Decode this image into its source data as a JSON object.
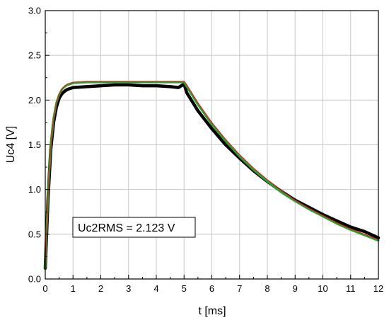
{
  "chart_data": {
    "type": "line",
    "xlabel": "t [ms]",
    "ylabel": "Uc4 [V]",
    "xlim": [
      0,
      12
    ],
    "ylim": [
      0,
      3.0
    ],
    "x_ticks": [
      "0",
      "1",
      "2",
      "3",
      "4",
      "5",
      "6",
      "7",
      "8",
      "9",
      "10",
      "11",
      "12"
    ],
    "y_ticks": [
      "0.0",
      "0.5",
      "1.0",
      "1.5",
      "2.0",
      "2.5",
      "3.0"
    ],
    "grid": true,
    "annotation": "Uc2RMS = 2.123 V",
    "series": [
      {
        "color": "#000000",
        "points": [
          [
            0,
            0.12
          ],
          [
            0.1,
            0.9
          ],
          [
            0.2,
            1.45
          ],
          [
            0.3,
            1.75
          ],
          [
            0.4,
            1.92
          ],
          [
            0.5,
            2.02
          ],
          [
            0.6,
            2.07
          ],
          [
            0.7,
            2.1
          ],
          [
            0.8,
            2.12
          ],
          [
            1,
            2.14
          ],
          [
            1.5,
            2.15
          ],
          [
            2,
            2.16
          ],
          [
            2.5,
            2.17
          ],
          [
            3,
            2.17
          ],
          [
            3.5,
            2.16
          ],
          [
            4,
            2.16
          ],
          [
            4.5,
            2.15
          ],
          [
            4.8,
            2.14
          ],
          [
            5,
            2.18
          ],
          [
            5.1,
            2.08
          ],
          [
            5.5,
            1.88
          ],
          [
            6,
            1.68
          ],
          [
            6.5,
            1.5
          ],
          [
            7,
            1.35
          ],
          [
            7.5,
            1.21
          ],
          [
            8,
            1.09
          ],
          [
            8.5,
            0.98
          ],
          [
            9,
            0.88
          ],
          [
            9.5,
            0.8
          ],
          [
            10,
            0.72
          ],
          [
            10.5,
            0.65
          ],
          [
            11,
            0.58
          ],
          [
            11.5,
            0.53
          ],
          [
            12,
            0.46
          ]
        ]
      },
      {
        "color": "#2ca02c",
        "points": [
          [
            0,
            0.12
          ],
          [
            0.1,
            0.95
          ],
          [
            0.2,
            1.5
          ],
          [
            0.3,
            1.8
          ],
          [
            0.4,
            1.97
          ],
          [
            0.5,
            2.06
          ],
          [
            0.6,
            2.12
          ],
          [
            0.7,
            2.15
          ],
          [
            0.8,
            2.17
          ],
          [
            1,
            2.19
          ],
          [
            1.5,
            2.2
          ],
          [
            2,
            2.2
          ],
          [
            3,
            2.2
          ],
          [
            4,
            2.2
          ],
          [
            5,
            2.2
          ],
          [
            5.1,
            2.15
          ],
          [
            5.5,
            1.95
          ],
          [
            6,
            1.73
          ],
          [
            6.5,
            1.54
          ],
          [
            7,
            1.37
          ],
          [
            7.5,
            1.22
          ],
          [
            8,
            1.09
          ],
          [
            8.5,
            0.97
          ],
          [
            9,
            0.87
          ],
          [
            9.5,
            0.78
          ],
          [
            10,
            0.7
          ],
          [
            10.5,
            0.62
          ],
          [
            11,
            0.55
          ],
          [
            11.5,
            0.49
          ],
          [
            12,
            0.43
          ]
        ]
      },
      {
        "color": "#d62728",
        "points": [
          [
            0,
            0.12
          ],
          [
            0.1,
            0.93
          ],
          [
            0.2,
            1.48
          ],
          [
            0.3,
            1.79
          ],
          [
            0.4,
            1.96
          ],
          [
            0.5,
            2.06
          ],
          [
            0.6,
            2.12
          ],
          [
            0.7,
            2.16
          ],
          [
            0.8,
            2.18
          ],
          [
            1,
            2.2
          ],
          [
            1.5,
            2.21
          ],
          [
            2,
            2.21
          ],
          [
            3,
            2.21
          ],
          [
            4,
            2.21
          ],
          [
            5,
            2.21
          ],
          [
            5.1,
            2.17
          ],
          [
            5.5,
            1.97
          ],
          [
            6,
            1.75
          ],
          [
            6.5,
            1.56
          ],
          [
            7,
            1.39
          ],
          [
            7.5,
            1.24
          ],
          [
            8,
            1.11
          ],
          [
            8.5,
            0.99
          ],
          [
            9,
            0.88
          ],
          [
            9.5,
            0.79
          ],
          [
            10,
            0.71
          ],
          [
            10.5,
            0.63
          ],
          [
            11,
            0.56
          ],
          [
            11.5,
            0.5
          ],
          [
            12,
            0.44
          ]
        ]
      }
    ]
  }
}
